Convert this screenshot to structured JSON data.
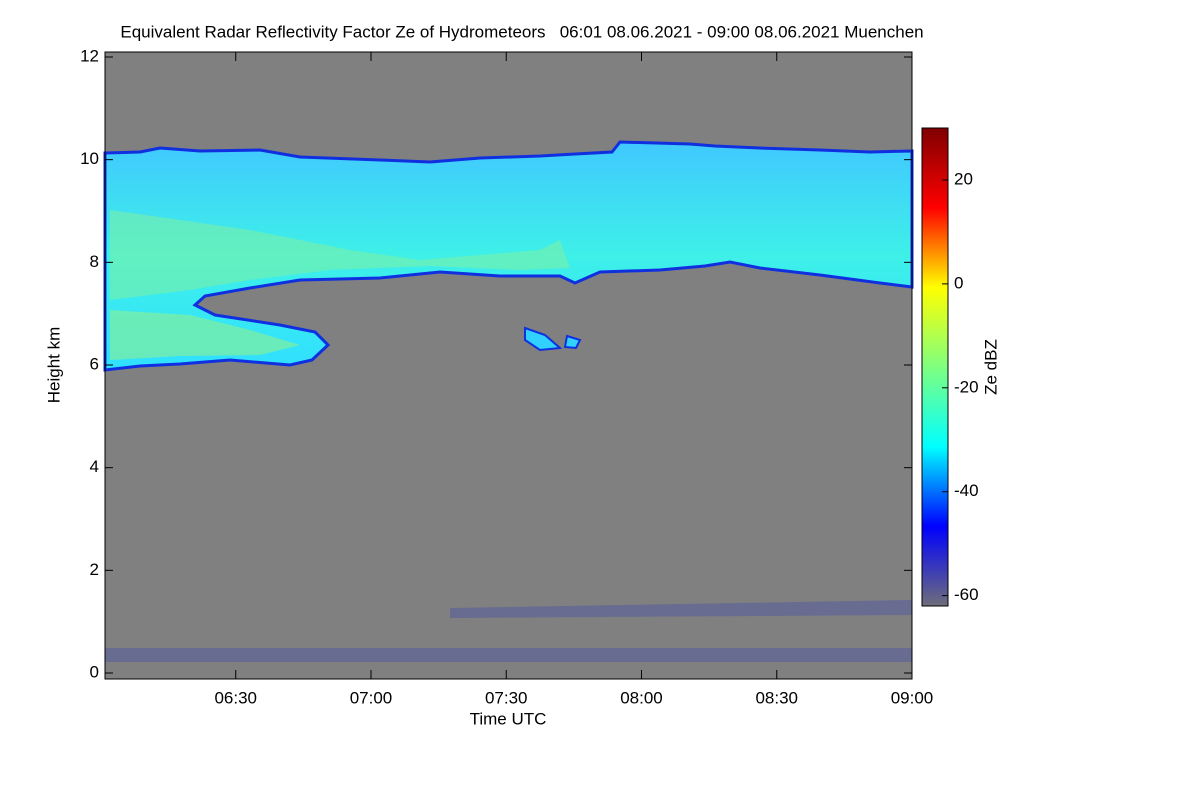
{
  "chart_data": {
    "type": "heatmap",
    "title": "Equivalent Radar Reflectivity Factor Ze of Hydrometeors   06:01 08.06.2021 - 09:00 08.06.2021 Muenchen",
    "x_label": "Time UTC",
    "y_label": "Height km",
    "xlim": [
      361,
      540
    ],
    "xticks": [
      {
        "value": 390,
        "label": "06:30"
      },
      {
        "value": 420,
        "label": "07:00"
      },
      {
        "value": 450,
        "label": "07:30"
      },
      {
        "value": 480,
        "label": "08:00"
      },
      {
        "value": 510,
        "label": "08:30"
      },
      {
        "value": 540,
        "label": "09:00"
      }
    ],
    "ylim": [
      0,
      12
    ],
    "yticks": [
      0,
      2,
      4,
      6,
      8,
      10,
      12
    ],
    "colorbar": {
      "label": "Ze dBZ",
      "lim": [
        -62,
        30
      ],
      "ticks": [
        -60,
        -40,
        -20,
        0,
        20
      ],
      "colormap": [
        "#6e6e7a",
        "#0000ff",
        "#00ffff",
        "#7fff7f",
        "#ffff00",
        "#ff0000",
        "#800000"
      ]
    },
    "background": "#808080"
  }
}
